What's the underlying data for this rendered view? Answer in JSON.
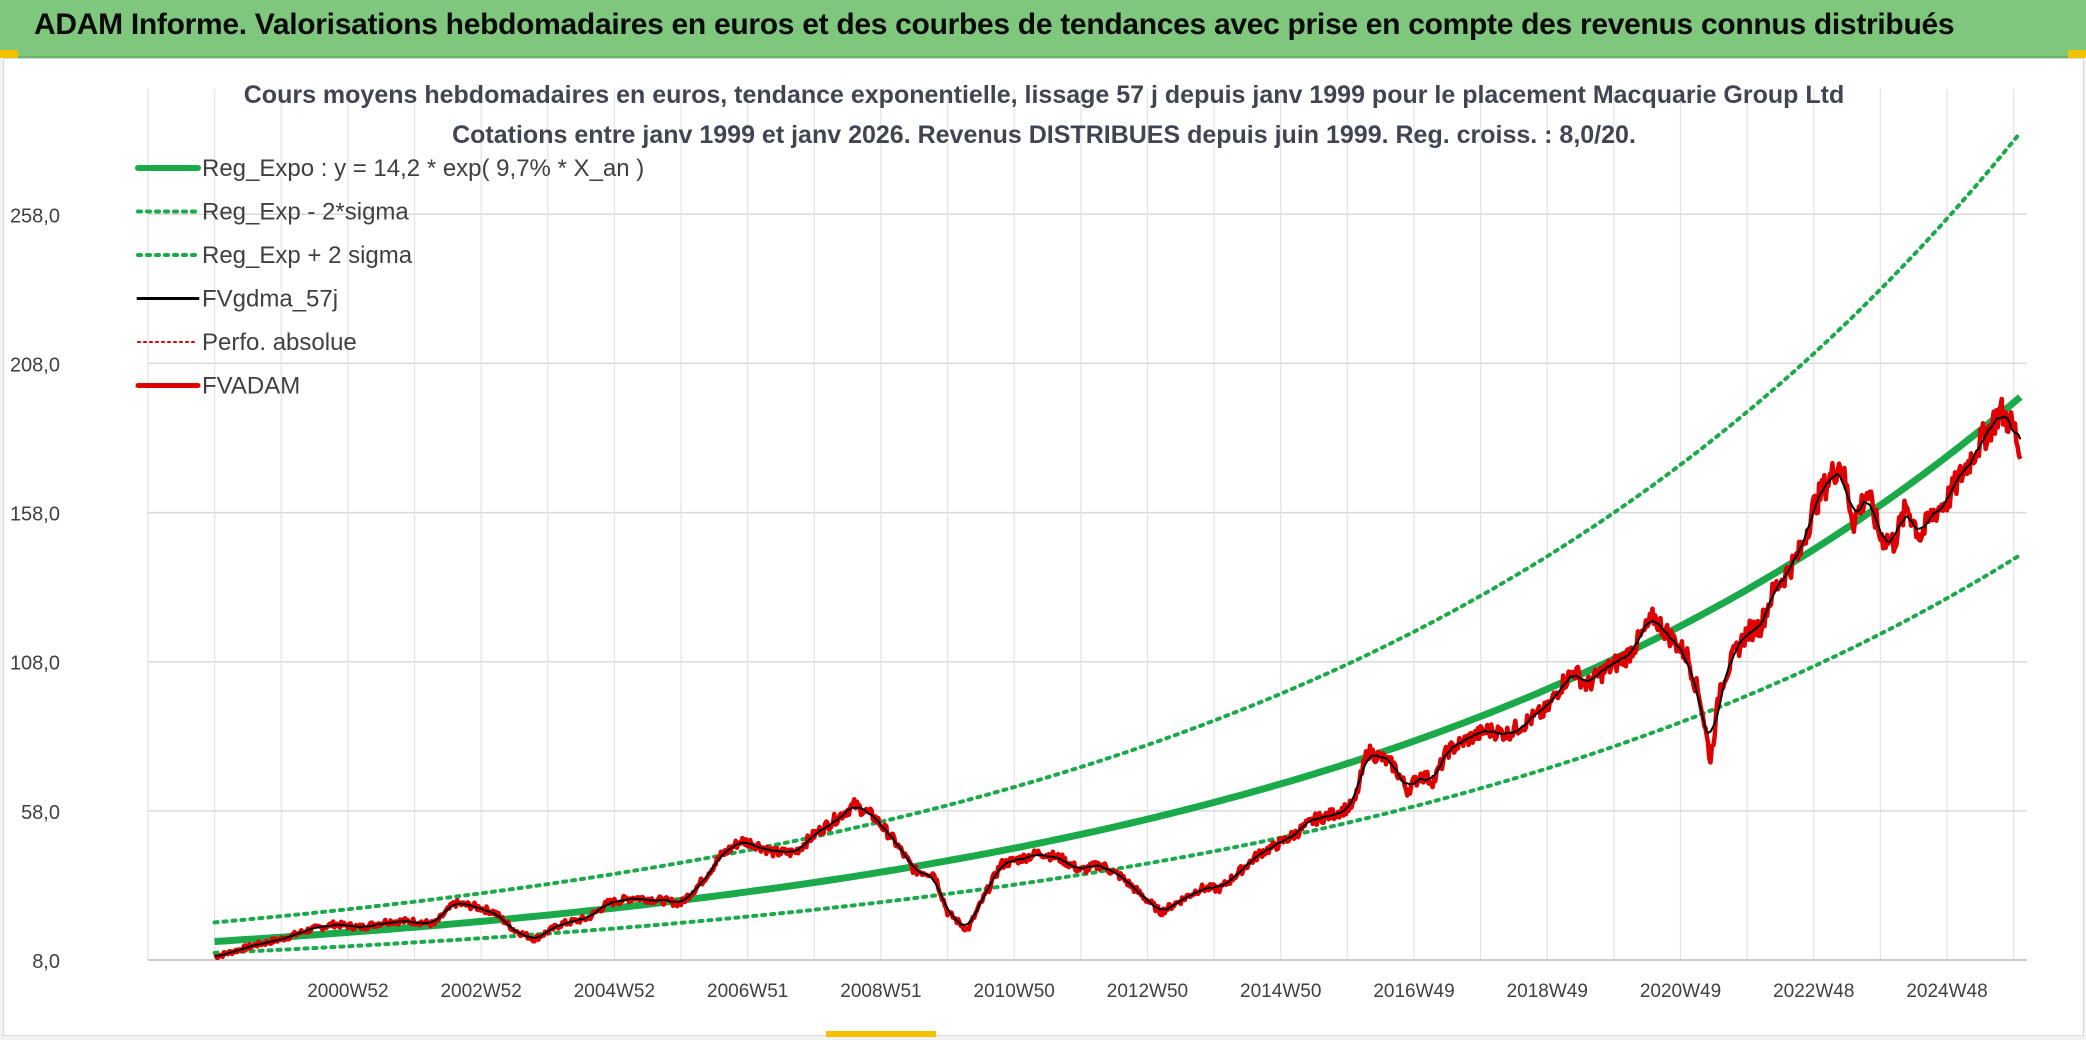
{
  "header": {
    "title": "ADAM Informe. Valorisations hebdomadaires en euros et des courbes de tendances avec prise en compte des revenus connus distribués"
  },
  "chart_data": {
    "type": "line",
    "title": "Cours moyens hebdomadaires en euros, tendance exponentielle, lissage 57 j depuis janv 1999 pour le placement Macquarie Group Ltd",
    "subtitle": "Cotations entre janv 1999 et janv 2026. Revenus DISTRIBUES depuis juin 1999. Reg. croiss. : 8,0/20.",
    "xlabel": "",
    "ylabel": "",
    "y_ticks": [
      "8,0",
      "58,0",
      "108,0",
      "158,0",
      "208,0",
      "258,0"
    ],
    "x_ticks": [
      "2000W52",
      "2002W52",
      "2004W52",
      "2006W51",
      "2008W51",
      "2010W50",
      "2012W50",
      "2014W50",
      "2016W49",
      "2018W49",
      "2020W49",
      "2022W48",
      "2024W48"
    ],
    "ylim": [
      8,
      300
    ],
    "xlim": [
      1998,
      2026.2
    ],
    "grid": true,
    "legend_position": "top-left",
    "series": [
      {
        "name": "Reg_Expo : y = 14,2 * exp( 9,7% *  X_an )",
        "color": "#1aaa4a",
        "style": "solid-thick",
        "formula": {
          "a": 14.2,
          "r": 0.097
        }
      },
      {
        "name": "Reg_Exp - 2*sigma",
        "color": "#1aaa4a",
        "style": "dotted",
        "formula": {
          "a": 10.38,
          "r": 0.097
        }
      },
      {
        "name": "Reg_Exp + 2 sigma",
        "color": "#1aaa4a",
        "style": "dotted",
        "formula": {
          "a": 20.6,
          "r": 0.097
        }
      },
      {
        "name": "FVgdma_57j",
        "color": "#000000",
        "style": "solid"
      },
      {
        "name": "Perfo. absolue",
        "color": "#e00000",
        "style": "dotted-thin"
      },
      {
        "name": "FVADAM",
        "color": "#e00000",
        "style": "solid-thick"
      }
    ],
    "fvadam_points": [
      [
        1999.0,
        9
      ],
      [
        1999.3,
        11
      ],
      [
        1999.6,
        13
      ],
      [
        2000.0,
        15
      ],
      [
        2000.4,
        18
      ],
      [
        2000.8,
        20
      ],
      [
        2001.2,
        19
      ],
      [
        2001.6,
        21
      ],
      [
        2002.0,
        21
      ],
      [
        2002.3,
        20
      ],
      [
        2002.6,
        27
      ],
      [
        2002.9,
        26
      ],
      [
        2003.2,
        24
      ],
      [
        2003.5,
        18
      ],
      [
        2003.8,
        15
      ],
      [
        2004.2,
        20
      ],
      [
        2004.6,
        22
      ],
      [
        2004.9,
        27
      ],
      [
        2005.3,
        29
      ],
      [
        2005.7,
        28
      ],
      [
        2006.0,
        27
      ],
      [
        2006.3,
        34
      ],
      [
        2006.6,
        43
      ],
      [
        2006.9,
        48
      ],
      [
        2007.1,
        47
      ],
      [
        2007.4,
        44
      ],
      [
        2007.7,
        44
      ],
      [
        2008.0,
        50
      ],
      [
        2008.3,
        55
      ],
      [
        2008.6,
        60
      ],
      [
        2008.9,
        56
      ],
      [
        2009.2,
        48
      ],
      [
        2009.5,
        38
      ],
      [
        2009.8,
        37
      ],
      [
        2010.0,
        24
      ],
      [
        2010.3,
        18
      ],
      [
        2010.5,
        27
      ],
      [
        2010.8,
        40
      ],
      [
        2011.1,
        42
      ],
      [
        2011.4,
        44
      ],
      [
        2011.7,
        42
      ],
      [
        2012.0,
        38
      ],
      [
        2012.3,
        40
      ],
      [
        2012.6,
        36
      ],
      [
        2012.9,
        30
      ],
      [
        2013.2,
        24
      ],
      [
        2013.5,
        28
      ],
      [
        2013.8,
        32
      ],
      [
        2014.1,
        32
      ],
      [
        2014.4,
        38
      ],
      [
        2014.7,
        44
      ],
      [
        2014.9,
        46
      ],
      [
        2015.2,
        50
      ],
      [
        2015.5,
        55
      ],
      [
        2015.8,
        57
      ],
      [
        2016.1,
        60
      ],
      [
        2016.3,
        78
      ],
      [
        2016.5,
        76
      ],
      [
        2016.7,
        73
      ],
      [
        2016.9,
        65
      ],
      [
        2017.1,
        70
      ],
      [
        2017.3,
        68
      ],
      [
        2017.5,
        78
      ],
      [
        2017.8,
        82
      ],
      [
        2018.1,
        85
      ],
      [
        2018.4,
        84
      ],
      [
        2018.7,
        88
      ],
      [
        2019.0,
        92
      ],
      [
        2019.2,
        100
      ],
      [
        2019.4,
        105
      ],
      [
        2019.6,
        100
      ],
      [
        2019.8,
        104
      ],
      [
        2020.0,
        107
      ],
      [
        2020.2,
        110
      ],
      [
        2020.4,
        116
      ],
      [
        2020.6,
        123
      ],
      [
        2020.9,
        115
      ],
      [
        2021.1,
        110
      ],
      [
        2021.3,
        95
      ],
      [
        2021.45,
        75
      ],
      [
        2021.6,
        100
      ],
      [
        2021.8,
        110
      ],
      [
        2022.0,
        118
      ],
      [
        2022.2,
        120
      ],
      [
        2022.4,
        132
      ],
      [
        2022.6,
        138
      ],
      [
        2022.8,
        145
      ],
      [
        2023.0,
        160
      ],
      [
        2023.2,
        168
      ],
      [
        2023.4,
        175
      ],
      [
        2023.6,
        155
      ],
      [
        2023.8,
        165
      ],
      [
        2024.0,
        150
      ],
      [
        2024.2,
        148
      ],
      [
        2024.4,
        160
      ],
      [
        2024.6,
        150
      ],
      [
        2024.8,
        158
      ],
      [
        2025.0,
        162
      ],
      [
        2025.2,
        170
      ],
      [
        2025.4,
        178
      ],
      [
        2025.6,
        185
      ],
      [
        2025.8,
        192
      ],
      [
        2026.0,
        187
      ],
      [
        2026.1,
        176
      ]
    ]
  }
}
